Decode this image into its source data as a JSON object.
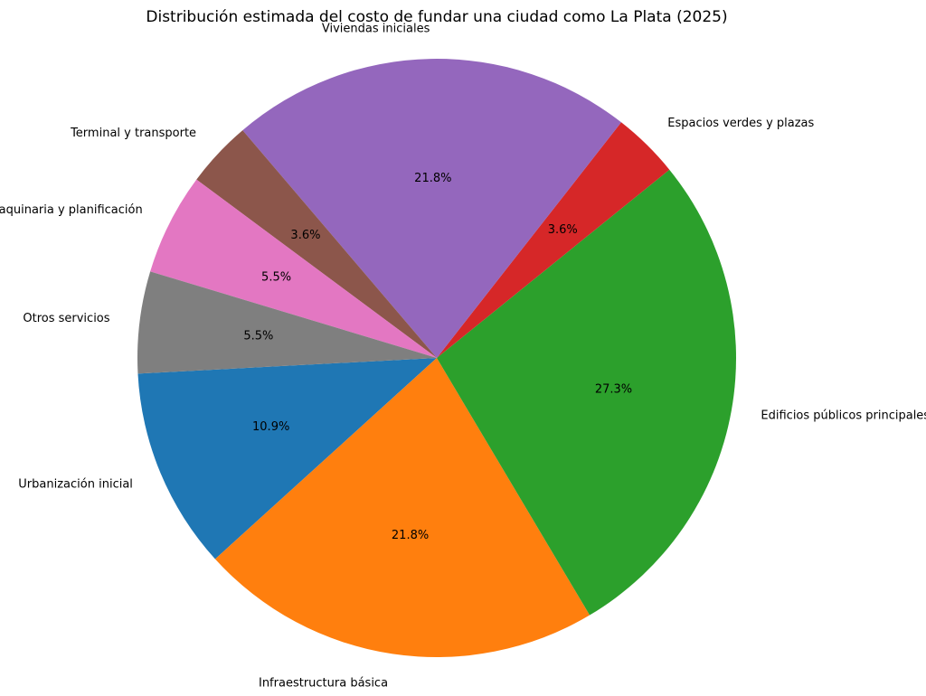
{
  "chart_data": {
    "type": "pie",
    "title": "Distribución estimada del costo de fundar una ciudad como La Plata (2025)",
    "slices": [
      {
        "label": "Urbanización inicial",
        "value": 10.9,
        "pct_label": "10.9%",
        "color": "#1f77b4"
      },
      {
        "label": "Infraestructura básica",
        "value": 21.8,
        "pct_label": "21.8%",
        "color": "#ff7f0e"
      },
      {
        "label": "Edificios públicos principales",
        "value": 27.3,
        "pct_label": "27.3%",
        "color": "#2ca02c"
      },
      {
        "label": "Espacios verdes y plazas",
        "value": 3.6,
        "pct_label": "3.6%",
        "color": "#d62728"
      },
      {
        "label": "Viviendas iniciales",
        "value": 21.8,
        "pct_label": "21.8%",
        "color": "#9467bd"
      },
      {
        "label": "Terminal y transporte",
        "value": 3.6,
        "pct_label": "3.6%",
        "color": "#8c564b"
      },
      {
        "label": "Maquinaria y planificación",
        "value": 5.5,
        "pct_label": "5.5%",
        "color": "#e377c2"
      },
      {
        "label": "Otros servicios",
        "value": 5.5,
        "pct_label": "5.5%",
        "color": "#7f7f7f"
      }
    ],
    "start_angle_deg": 183,
    "direction": "counterclockwise"
  }
}
